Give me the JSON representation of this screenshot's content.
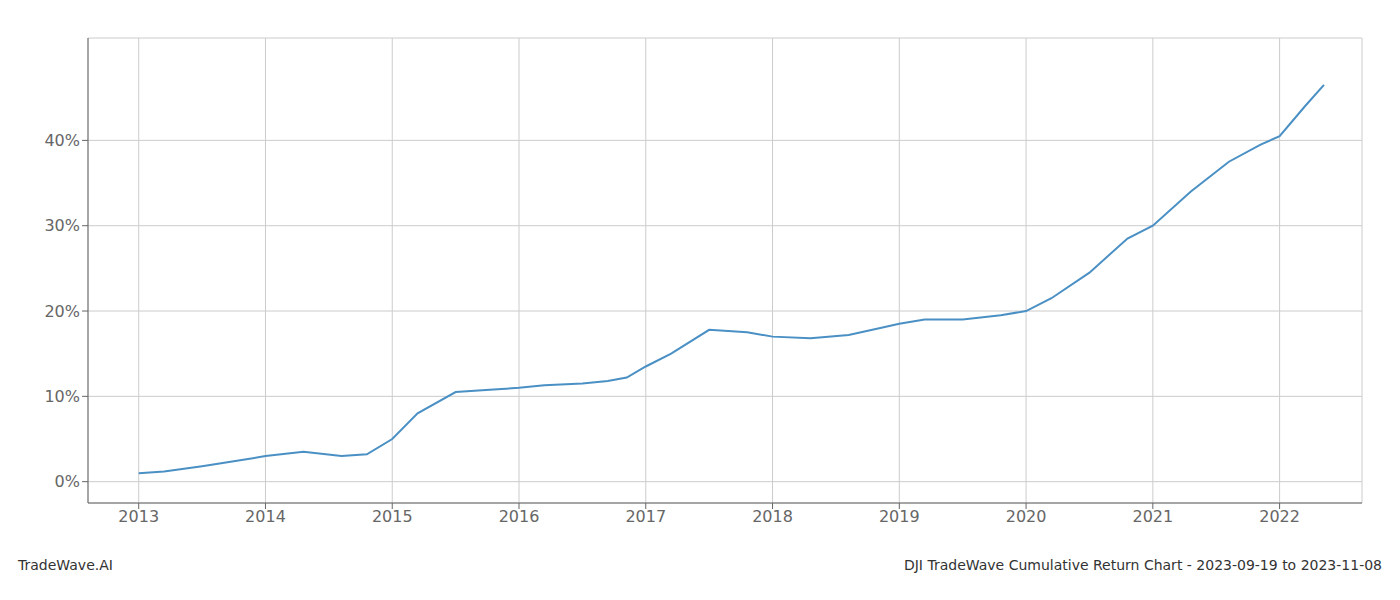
{
  "chart_data": {
    "type": "line",
    "title": "DJI TradeWave Cumulative Return Chart - 2023-09-19 to 2023-11-08",
    "annotations": [
      "TradeWave.AI"
    ],
    "color": "#4a90c4",
    "grid": true,
    "x": [
      2013.0,
      2013.2,
      2013.5,
      2013.8,
      2014.0,
      2014.3,
      2014.6,
      2014.8,
      2015.0,
      2015.2,
      2015.5,
      2015.8,
      2016.0,
      2016.2,
      2016.5,
      2016.7,
      2016.85,
      2017.0,
      2017.2,
      2017.5,
      2017.8,
      2018.0,
      2018.3,
      2018.6,
      2018.85,
      2019.0,
      2019.2,
      2019.5,
      2019.8,
      2020.0,
      2020.2,
      2020.5,
      2020.8,
      2021.0,
      2021.3,
      2021.6,
      2021.85,
      2022.0,
      2022.2,
      2022.35
    ],
    "values": [
      1.0,
      1.2,
      1.8,
      2.5,
      3.0,
      3.5,
      3.0,
      3.2,
      5.0,
      8.0,
      10.5,
      10.8,
      11.0,
      11.3,
      11.5,
      11.8,
      12.2,
      13.5,
      15.0,
      17.8,
      17.5,
      17.0,
      16.8,
      17.2,
      18.0,
      18.5,
      19.0,
      19.0,
      19.5,
      20.0,
      21.5,
      24.5,
      28.5,
      30.0,
      34.0,
      37.5,
      39.5,
      40.5,
      44.0,
      46.5
    ],
    "xlim": [
      2012.6,
      2022.65
    ],
    "ylim": [
      -2.5,
      52
    ],
    "xticks": [
      2013,
      2014,
      2015,
      2016,
      2017,
      2018,
      2019,
      2020,
      2021,
      2022
    ],
    "yticks": [
      {
        "value": 0,
        "label": "0%"
      },
      {
        "value": 10,
        "label": "10%"
      },
      {
        "value": 20,
        "label": "20%"
      },
      {
        "value": 30,
        "label": "30%"
      },
      {
        "value": 40,
        "label": "40%"
      }
    ]
  }
}
